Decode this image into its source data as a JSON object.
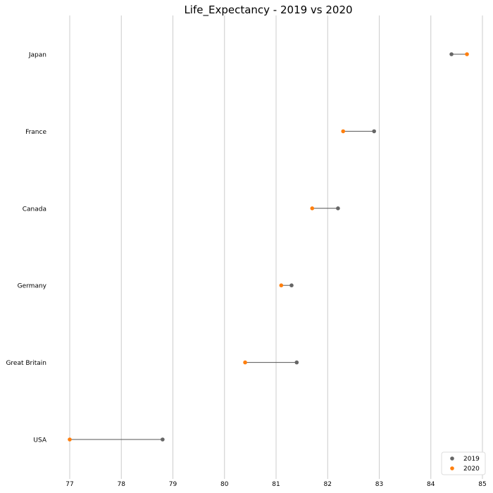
{
  "chart_data": {
    "type": "dumbbell",
    "title": "Life_Expectancy - 2019 vs 2020",
    "xlabel": "",
    "ylabel": "",
    "xlim": [
      76.95,
      85.05
    ],
    "xticks": [
      77,
      78,
      79,
      80,
      81,
      82,
      83,
      84,
      85
    ],
    "grid": "vertical",
    "legend": "bottom-right",
    "categories": [
      "Japan",
      "France",
      "Canada",
      "Germany",
      "Great Britain",
      "USA"
    ],
    "series": [
      {
        "name": "2019",
        "color": "#666666",
        "values": [
          84.4,
          82.9,
          82.2,
          81.3,
          81.4,
          78.8
        ]
      },
      {
        "name": "2020",
        "color": "#ff7f0e",
        "values": [
          84.7,
          82.3,
          81.7,
          81.1,
          80.4,
          77.0
        ]
      }
    ]
  }
}
